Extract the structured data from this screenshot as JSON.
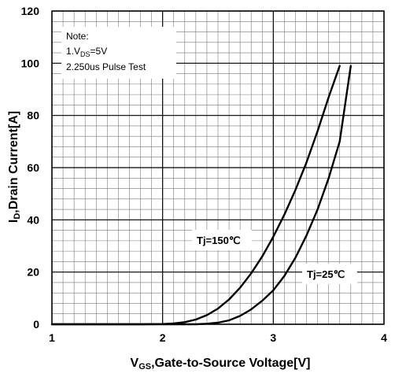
{
  "chart_data": {
    "type": "line",
    "xlabel": {
      "prefix": "V",
      "sub": "GS",
      "suffix": ",Gate-to-Source Voltage[V]"
    },
    "ylabel": {
      "prefix": "I",
      "sub": "D",
      "suffix": ",Drain Current[A]"
    },
    "xlim": [
      1,
      4
    ],
    "ylim": [
      0,
      120
    ],
    "x_ticks": [
      "1",
      "2",
      "3",
      "4"
    ],
    "y_ticks": [
      "0",
      "20",
      "40",
      "60",
      "80",
      "100",
      "120"
    ],
    "grid": true,
    "note": {
      "title": "Note:",
      "line1": {
        "prefix": "1.V",
        "sub": "DS",
        "suffix": "=5V"
      },
      "line2": "2.250us Pulse Test"
    },
    "series": [
      {
        "name": "Tj=150℃",
        "points": [
          [
            1.0,
            0
          ],
          [
            1.8,
            0
          ],
          [
            2.0,
            0.1
          ],
          [
            2.1,
            0.3
          ],
          [
            2.2,
            0.8
          ],
          [
            2.3,
            1.8
          ],
          [
            2.4,
            3.5
          ],
          [
            2.5,
            6
          ],
          [
            2.6,
            9.5
          ],
          [
            2.7,
            14
          ],
          [
            2.8,
            19.5
          ],
          [
            2.9,
            26
          ],
          [
            3.0,
            33.5
          ],
          [
            3.1,
            42
          ],
          [
            3.2,
            51.5
          ],
          [
            3.3,
            62
          ],
          [
            3.4,
            74
          ],
          [
            3.5,
            87
          ],
          [
            3.6,
            99
          ]
        ]
      },
      {
        "name": "Tj=25℃",
        "points": [
          [
            1.0,
            0
          ],
          [
            2.3,
            0
          ],
          [
            2.4,
            0.2
          ],
          [
            2.5,
            0.6
          ],
          [
            2.6,
            1.5
          ],
          [
            2.7,
            3.2
          ],
          [
            2.8,
            5.7
          ],
          [
            2.9,
            9
          ],
          [
            3.0,
            13
          ],
          [
            3.1,
            18.5
          ],
          [
            3.2,
            25.5
          ],
          [
            3.3,
            34
          ],
          [
            3.4,
            44
          ],
          [
            3.5,
            56
          ],
          [
            3.6,
            70
          ],
          [
            3.7,
            99
          ]
        ]
      }
    ]
  }
}
